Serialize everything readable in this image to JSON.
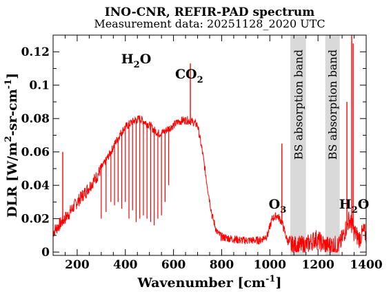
{
  "chart_data": {
    "type": "line",
    "title": "INO-CNR, REFIR-PAD spectrum",
    "subtitle": "Measurement data: 20251128_2020 UTC",
    "xlabel": "Wavenumber [cm-1]",
    "xlabel_parts": {
      "main": "Wavenumber [cm",
      "sup": "-1",
      "tail": "]"
    },
    "ylabel": "DLR [W/m2-sr-cm-1]",
    "ylabel_parts": {
      "a": "DLR [W/m",
      "sup1": "2",
      "b": "-sr-cm",
      "sup2": "-1",
      "c": "]"
    },
    "xlim": [
      100,
      1400
    ],
    "ylim": [
      -0.002,
      0.13
    ],
    "x_ticks": [
      200,
      400,
      600,
      800,
      1000,
      1200,
      1400
    ],
    "x_tick_labels": [
      "200",
      "400",
      "600",
      "800",
      "1000",
      "1200",
      "1400"
    ],
    "y_ticks": [
      0,
      0.02,
      0.04,
      0.06,
      0.08,
      0.1,
      0.12
    ],
    "y_tick_labels": [
      "0",
      "0.02",
      "0.04",
      "0.06",
      "0.08",
      "0.1",
      "0.12"
    ],
    "grid": false,
    "line_color": "#ff0000",
    "band_color": "#d9d9d9",
    "bands": [
      {
        "label": "BS absorption band",
        "x_range": [
          1085,
          1150
        ]
      },
      {
        "label": "BS absorption band",
        "x_range": [
          1230,
          1290
        ]
      }
    ],
    "annotations": [
      {
        "main": "H",
        "sub": "2",
        "tail": "O",
        "x": 445,
        "y": 0.113
      },
      {
        "main": "CO",
        "sub": "2",
        "tail": "",
        "x": 665,
        "y": 0.104
      },
      {
        "main": "O",
        "sub": "3",
        "tail": "",
        "x": 1032,
        "y": 0.026
      },
      {
        "main": "H",
        "sub": "2",
        "tail": "O",
        "x": 1350,
        "y": 0.026
      }
    ],
    "series": [
      {
        "x": [
          100,
          130,
          160,
          200,
          240,
          280,
          300,
          320,
          340,
          360,
          380,
          400,
          420,
          440,
          460,
          480,
          500,
          520,
          540,
          560,
          580,
          600,
          620,
          640,
          660,
          680,
          700,
          720,
          740,
          760,
          780,
          800,
          840,
          880,
          920,
          960,
          990,
          1010,
          1030,
          1050,
          1070,
          1085,
          1150,
          1170,
          1190,
          1210,
          1230,
          1290,
          1310,
          1330,
          1350,
          1370,
          1390,
          1400
        ],
        "values": [
          0.012,
          0.017,
          0.022,
          0.03,
          0.037,
          0.045,
          0.05,
          0.055,
          0.06,
          0.066,
          0.071,
          0.075,
          0.077,
          0.079,
          0.08,
          0.078,
          0.076,
          0.073,
          0.071,
          0.072,
          0.074,
          0.076,
          0.078,
          0.079,
          0.079,
          0.078,
          0.076,
          0.06,
          0.04,
          0.022,
          0.012,
          0.009,
          0.008,
          0.007,
          0.007,
          0.007,
          0.01,
          0.02,
          0.022,
          0.018,
          0.008,
          0.004,
          0.004,
          0.006,
          0.008,
          0.006,
          0.004,
          0.004,
          0.012,
          0.02,
          0.012,
          0.008,
          0.012,
          0.01
        ],
        "absorption_lines": [
          {
            "x": 300,
            "y": 0.02
          },
          {
            "x": 320,
            "y": 0.024
          },
          {
            "x": 340,
            "y": 0.03
          },
          {
            "x": 355,
            "y": 0.028
          },
          {
            "x": 370,
            "y": 0.03
          },
          {
            "x": 385,
            "y": 0.026
          },
          {
            "x": 400,
            "y": 0.03
          },
          {
            "x": 415,
            "y": 0.02
          },
          {
            "x": 430,
            "y": 0.025
          },
          {
            "x": 445,
            "y": 0.018
          },
          {
            "x": 460,
            "y": 0.02
          },
          {
            "x": 475,
            "y": 0.022
          },
          {
            "x": 490,
            "y": 0.02
          },
          {
            "x": 505,
            "y": 0.018
          },
          {
            "x": 520,
            "y": 0.016
          },
          {
            "x": 535,
            "y": 0.02
          },
          {
            "x": 550,
            "y": 0.022
          },
          {
            "x": 565,
            "y": 0.03
          },
          {
            "x": 580,
            "y": 0.04
          }
        ],
        "emission_spikes": [
          {
            "x": 140,
            "y": 0.06
          },
          {
            "x": 670,
            "y": 0.113
          },
          {
            "x": 1050,
            "y": 0.065
          },
          {
            "x": 1320,
            "y": 0.09
          },
          {
            "x": 1340,
            "y": 0.13
          },
          {
            "x": 1346,
            "y": 0.125
          }
        ]
      }
    ]
  }
}
